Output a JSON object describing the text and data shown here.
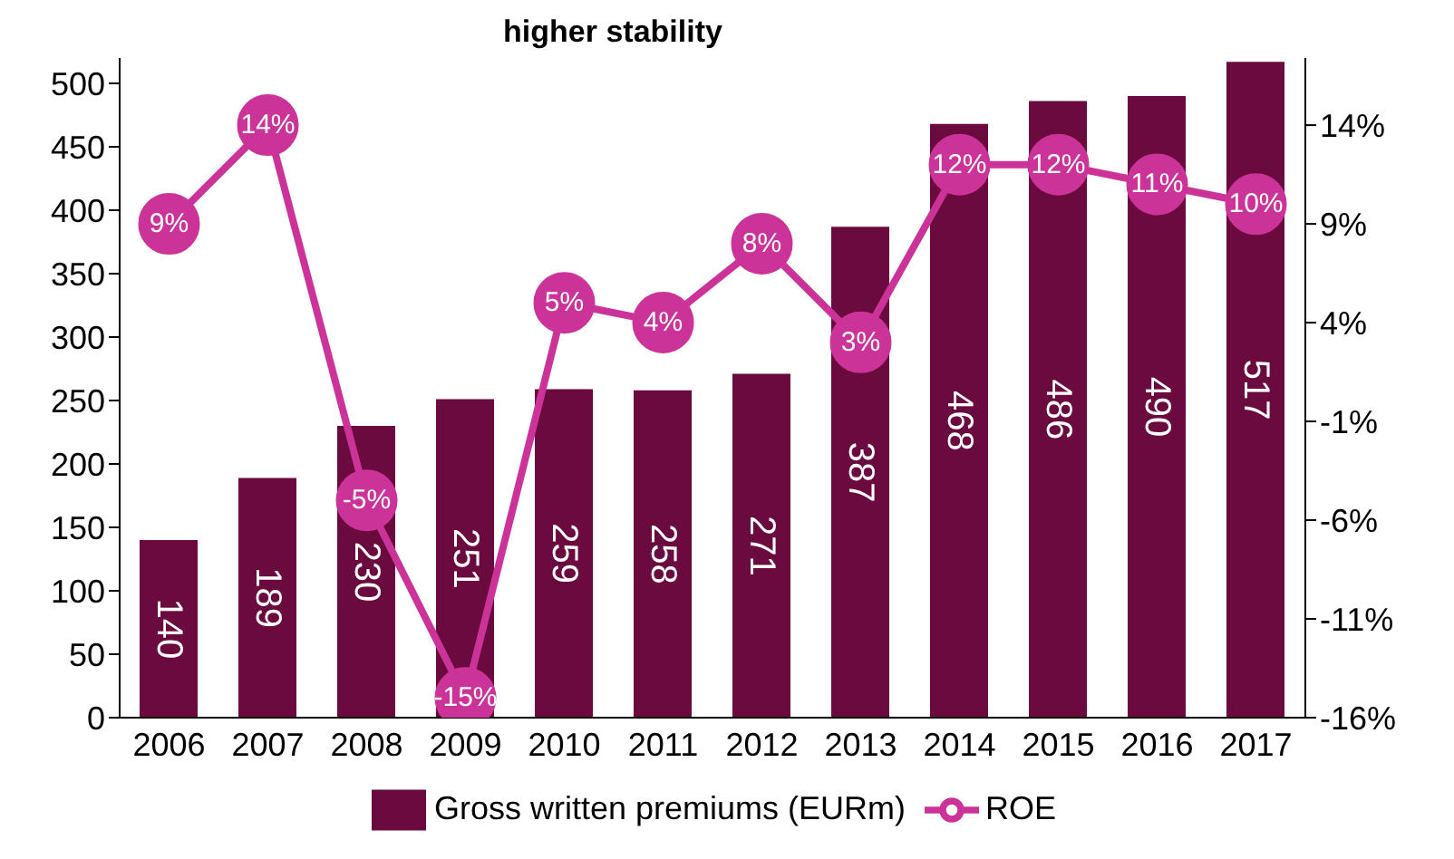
{
  "chart_data": {
    "type": "bar",
    "title": "higher stability",
    "categories": [
      "2006",
      "2007",
      "2008",
      "2009",
      "2010",
      "2011",
      "2012",
      "2013",
      "2014",
      "2015",
      "2016",
      "2017"
    ],
    "series": [
      {
        "name": "Gross written premiums (EURm)",
        "color": "#6b0a3e",
        "values": [
          140,
          189,
          230,
          251,
          259,
          258,
          271,
          387,
          468,
          486,
          490,
          517
        ],
        "value_labels": [
          "140",
          "189",
          "230",
          "251",
          "259",
          "258",
          "271",
          "387",
          "468",
          "486",
          "490",
          "517"
        ]
      },
      {
        "name": "ROE",
        "type": "line",
        "axis": "y2",
        "color": "#cc3399",
        "marker": "circle",
        "values": [
          9,
          14,
          -5,
          -15,
          5,
          4,
          8,
          3,
          12,
          12,
          11,
          10
        ],
        "value_labels": [
          "9%",
          "14%",
          "-5%",
          "-15%",
          "5%",
          "4%",
          "8%",
          "3%",
          "12%",
          "12%",
          "11%",
          "10%"
        ]
      }
    ],
    "ylim": [
      0,
      520
    ],
    "yticks": [
      0,
      50,
      100,
      150,
      200,
      250,
      300,
      350,
      400,
      450,
      500
    ],
    "y2lim": [
      -16,
      17.4
    ],
    "y2ticks": [
      {
        "value": -16,
        "label": "-16%"
      },
      {
        "value": -11,
        "label": "-11%"
      },
      {
        "value": -6,
        "label": "-6%"
      },
      {
        "value": -1,
        "label": "-1%"
      },
      {
        "value": 4,
        "label": "4%"
      },
      {
        "value": 9,
        "label": "9%"
      },
      {
        "value": 14,
        "label": "14%"
      }
    ],
    "grid": false,
    "legend": "bottom"
  }
}
